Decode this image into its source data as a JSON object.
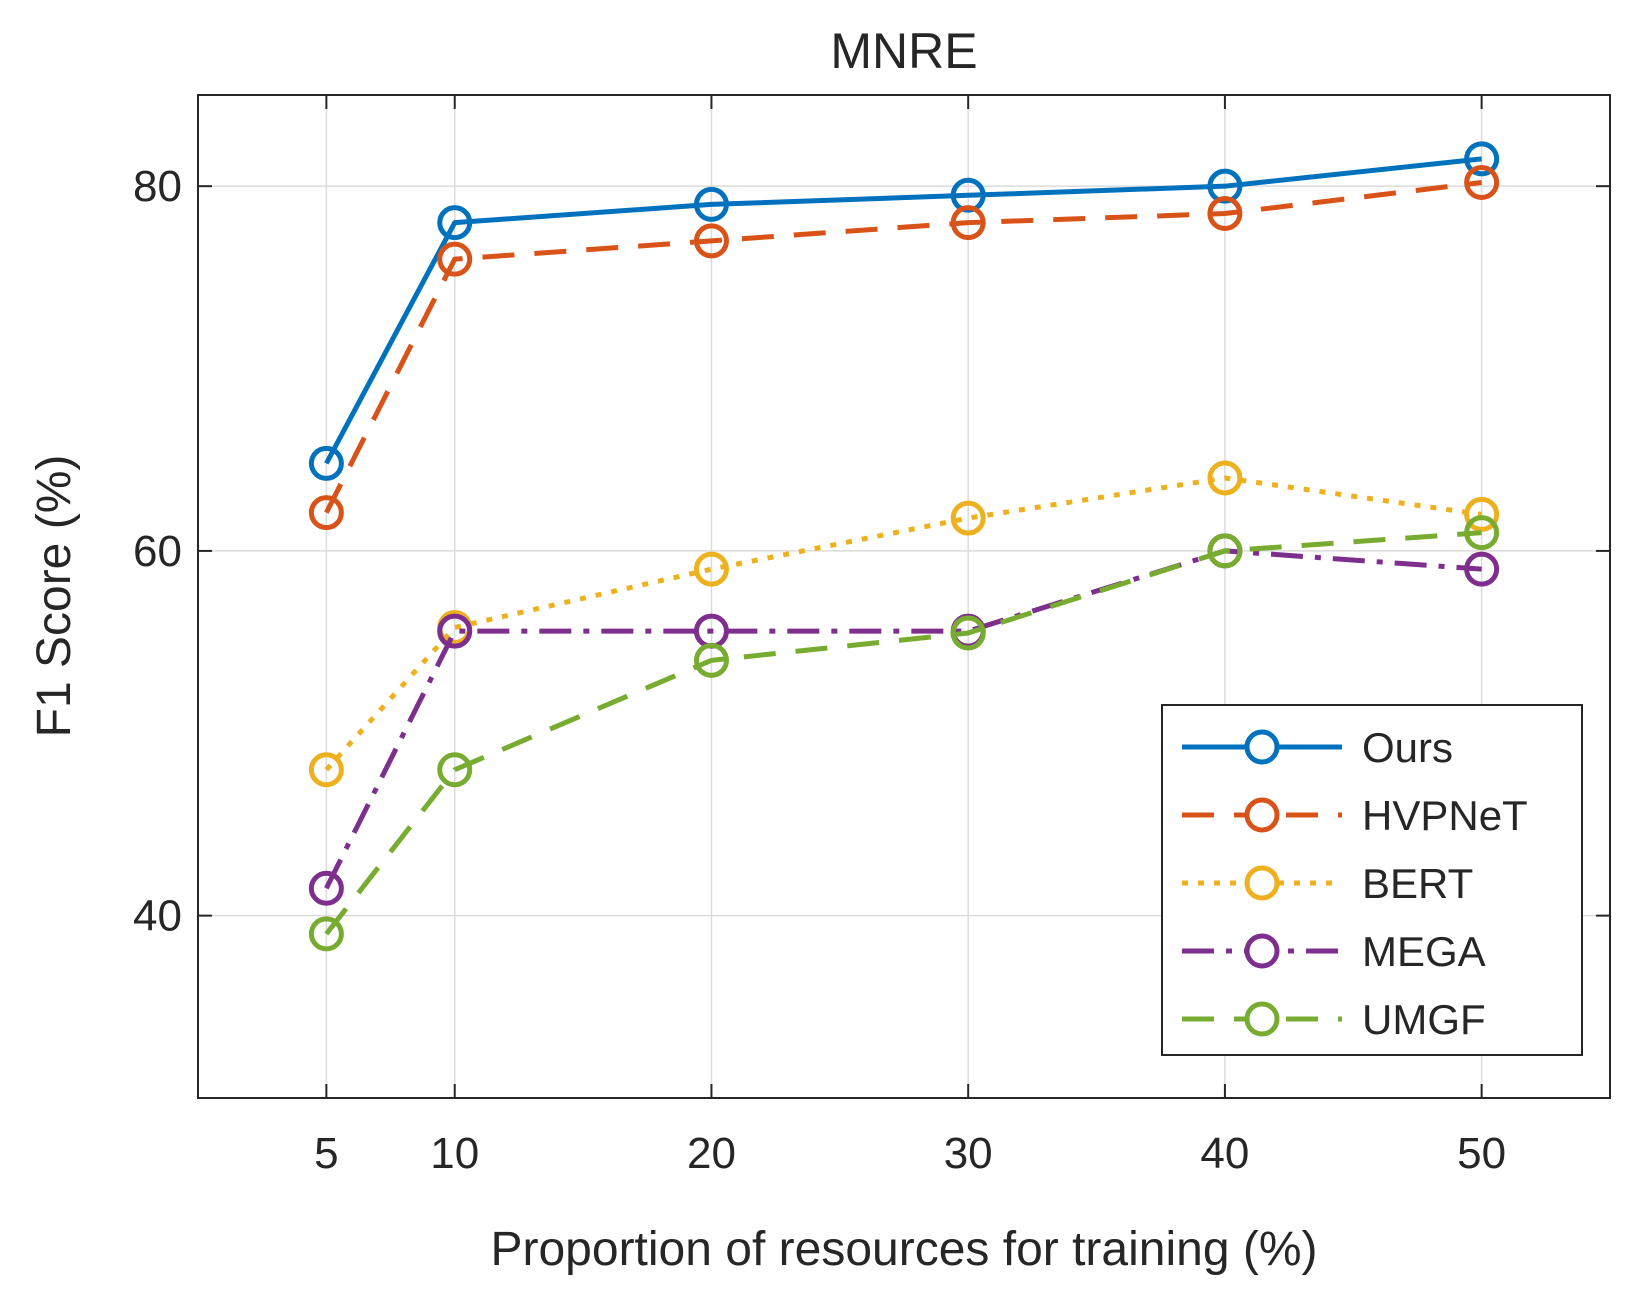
{
  "chart_data": {
    "type": "line",
    "title": "MNRE",
    "xlabel": "Proportion of resources for training (%)",
    "ylabel": "F1 Score (%)",
    "x": [
      5,
      10,
      20,
      30,
      40,
      50
    ],
    "xticks": [
      "5",
      "10",
      "20",
      "30",
      "40",
      "50"
    ],
    "yticks": [
      "40",
      "60",
      "80"
    ],
    "xlim": [
      0,
      55
    ],
    "ylim": [
      30,
      85
    ],
    "grid": true,
    "legend_position": "bottom-right",
    "series": [
      {
        "name": "Ours",
        "color": "#0072BD",
        "dash": "solid",
        "values": [
          64.8,
          78.0,
          79.0,
          79.5,
          80.0,
          81.5
        ]
      },
      {
        "name": "HVPNeT",
        "color": "#D95319",
        "dash": "dashed",
        "values": [
          62.1,
          76.0,
          77.0,
          78.0,
          78.5,
          80.2
        ]
      },
      {
        "name": "BERT",
        "color": "#EDB120",
        "dash": "dotted",
        "values": [
          48.0,
          55.8,
          59.0,
          61.8,
          64.0,
          62.0
        ]
      },
      {
        "name": "MEGA",
        "color": "#7E2F8E",
        "dash": "dashdot",
        "values": [
          41.5,
          55.6,
          55.6,
          55.6,
          60.0,
          59.0
        ]
      },
      {
        "name": "UMGF",
        "color": "#77AC30",
        "dash": "dashed",
        "values": [
          39.0,
          48.0,
          54.0,
          55.5,
          60.0,
          61.0
        ]
      }
    ]
  }
}
